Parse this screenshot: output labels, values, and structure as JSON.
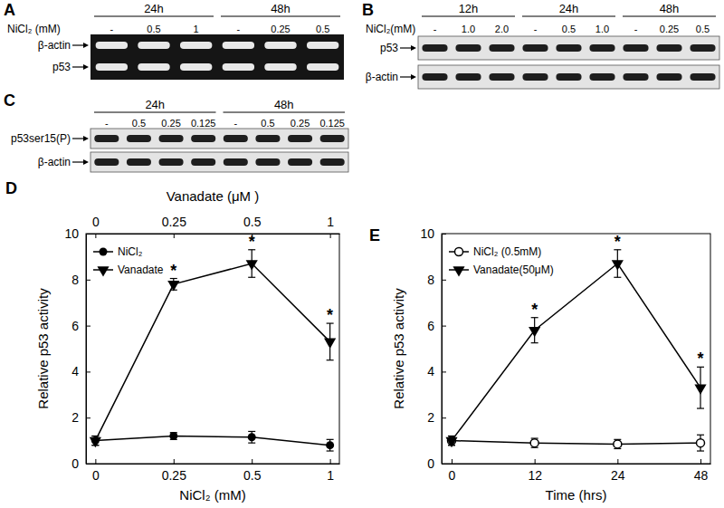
{
  "blots": [
    {
      "panel": "A",
      "condition_label": "NiCl₂ (mM)",
      "groups": [
        {
          "label": "24h",
          "lanes": [
            "-",
            "0.5",
            "1"
          ]
        },
        {
          "label": "48h",
          "lanes": [
            "-",
            "0.25",
            "0.5"
          ]
        }
      ],
      "rows": [
        "β-actin",
        "p53"
      ]
    },
    {
      "panel": "B",
      "condition_label": "NiCl₂(mM)",
      "groups": [
        {
          "label": "12h",
          "lanes": [
            "-",
            "1.0",
            "2.0"
          ]
        },
        {
          "label": "24h",
          "lanes": [
            "-",
            "0.5",
            "1.0"
          ]
        },
        {
          "label": "48h",
          "lanes": [
            "-",
            "0.25",
            "0.5"
          ]
        }
      ],
      "rows": [
        "p53",
        "β-actin"
      ]
    },
    {
      "panel": "C",
      "groups": [
        {
          "label": "24h",
          "lanes": [
            "-",
            "0.5",
            "0.25",
            "0.125"
          ]
        },
        {
          "label": "48h",
          "lanes": [
            "-",
            "0.5",
            "0.25",
            "0.125"
          ]
        }
      ],
      "rows": [
        "p53ser15(P)",
        "β-actin"
      ]
    }
  ],
  "chart_data": [
    {
      "panel": "D",
      "type": "line",
      "categories": [
        "0",
        "0.25",
        "0.5",
        "1"
      ],
      "x_label": "NiCl₂ (mM)",
      "x2_categories": [
        "0",
        "0.25",
        "0.5",
        "1"
      ],
      "x2_label": "Vanadate (μM )",
      "y_label": "Relative p53 activity",
      "ylim": [
        0,
        10
      ],
      "yticks": [
        0,
        2,
        4,
        6,
        8,
        10
      ],
      "legend": "upper left",
      "series": [
        {
          "name": "NiCl₂",
          "color": "#000000",
          "marker": "circle",
          "values": [
            1.0,
            1.2,
            1.15,
            0.8
          ],
          "errors": [
            0.2,
            0.15,
            0.25,
            0.25
          ]
        },
        {
          "name": "Vanadate",
          "color": "#000000",
          "marker": "triangle_down",
          "axis": "x2",
          "values": [
            1.0,
            7.8,
            8.7,
            5.3
          ],
          "errors": [
            0.2,
            0.25,
            0.6,
            0.8
          ],
          "significance": [
            null,
            "*",
            "*",
            "*"
          ]
        }
      ]
    },
    {
      "panel": "E",
      "type": "line",
      "categories": [
        "0",
        "12",
        "24",
        "48"
      ],
      "x_label": "Time (hrs)",
      "y_label": "Relative p53 activity",
      "ylim": [
        0,
        10
      ],
      "yticks": [
        0,
        2,
        4,
        6,
        8,
        10
      ],
      "legend": "upper left",
      "series": [
        {
          "name": "NiCl₂ (0.5mM)",
          "color": "#000000",
          "marker": "open_circle",
          "values": [
            1.0,
            0.9,
            0.85,
            0.9
          ],
          "errors": [
            0.2,
            0.2,
            0.2,
            0.35
          ]
        },
        {
          "name": "Vanadate(50μM)",
          "color": "#000000",
          "marker": "triangle_down",
          "values": [
            1.0,
            5.8,
            8.7,
            3.3
          ],
          "errors": [
            0.2,
            0.55,
            0.6,
            0.9
          ],
          "significance": [
            null,
            "*",
            "*",
            "*"
          ]
        }
      ]
    }
  ]
}
